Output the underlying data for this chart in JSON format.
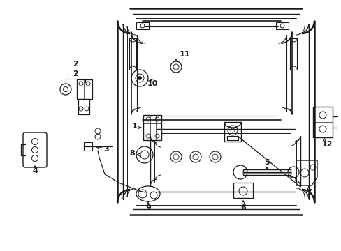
{
  "bg_color": "#ffffff",
  "line_color": "#1a1a1a",
  "figsize": [
    4.89,
    3.6
  ],
  "dpi": 100
}
